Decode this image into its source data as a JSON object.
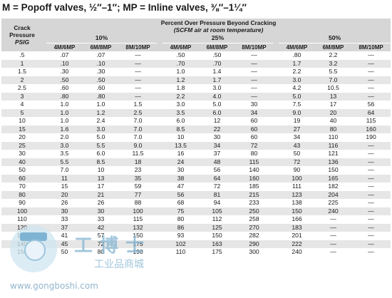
{
  "title": "M = Popoff valves, ½″–1″; MP = Inline valves, ⅜″–1¼″",
  "header": {
    "left_line1": "Crack",
    "left_line2": "Pressure",
    "left_line3": "PSIG",
    "top_line1": "Percent Over Pressure Beyond Cracking",
    "top_line2": "(SCFM air at room temperature)",
    "pct_10": "10%",
    "pct_25": "25%",
    "pct_50": "50%",
    "columns": [
      "4M/6MP",
      "6M/8MP",
      "8M/10MP",
      "4M/6MP",
      "6M/8MP",
      "8M/10MP",
      "4M/6MP",
      "6M/8MP",
      "8M/10MP"
    ]
  },
  "rows": [
    {
      "psig": ".5",
      "v": [
        ".07",
        ".07",
        "—",
        ".50",
        ".50",
        "—",
        ".80",
        "2.2",
        "—"
      ]
    },
    {
      "psig": "1",
      "v": [
        ".10",
        ".10",
        "—",
        ".70",
        ".70",
        "—",
        "1.7",
        "3.2",
        "—"
      ]
    },
    {
      "psig": "1.5",
      "v": [
        ".30",
        ".30",
        "—",
        "1.0",
        "1.4",
        "—",
        "2.2",
        "5.5",
        "—"
      ]
    },
    {
      "psig": "2",
      "v": [
        ".50",
        ".50",
        "—",
        "1.2",
        "1.7",
        "—",
        "3.0",
        "7.0",
        "—"
      ]
    },
    {
      "psig": "2.5",
      "v": [
        ".60",
        ".60",
        "—",
        "1.8",
        "3.0",
        "—",
        "4.2",
        "10.5",
        "—"
      ]
    },
    {
      "psig": "3",
      "v": [
        ".80",
        ".80",
        "—",
        "2.2",
        "4.0",
        "—",
        "5.0",
        "13",
        "—"
      ]
    },
    {
      "psig": "4",
      "v": [
        "1.0",
        "1.0",
        "1.5",
        "3.0",
        "5.0",
        "30",
        "7.5",
        "17",
        "56"
      ]
    },
    {
      "psig": "5",
      "v": [
        "1.0",
        "1.2",
        "2.5",
        "3.5",
        "6.0",
        "34",
        "9.0",
        "20",
        "64"
      ]
    },
    {
      "psig": "10",
      "v": [
        "1.0",
        "2.4",
        "7.0",
        "6.0",
        "12",
        "60",
        "19",
        "40",
        "115"
      ]
    },
    {
      "psig": "15",
      "v": [
        "1.6",
        "3.0",
        "7.0",
        "8.5",
        "22",
        "60",
        "27",
        "80",
        "160"
      ]
    },
    {
      "psig": "20",
      "v": [
        "2.0",
        "5.0",
        "7.0",
        "10",
        "30",
        "60",
        "34",
        "110",
        "190"
      ]
    },
    {
      "psig": "25",
      "v": [
        "3.0",
        "5.5",
        "9.0",
        "13.5",
        "34",
        "72",
        "43",
        "116",
        "—"
      ]
    },
    {
      "psig": "30",
      "v": [
        "3.5",
        "6.0",
        "11.5",
        "16",
        "37",
        "80",
        "50",
        "121",
        "—"
      ]
    },
    {
      "psig": "40",
      "v": [
        "5.5",
        "8.5",
        "18",
        "24",
        "48",
        "115",
        "72",
        "136",
        "—"
      ]
    },
    {
      "psig": "50",
      "v": [
        "7.0",
        "10",
        "23",
        "30",
        "56",
        "140",
        "90",
        "150",
        "—"
      ]
    },
    {
      "psig": "60",
      "v": [
        "11",
        "13",
        "35",
        "38",
        "64",
        "160",
        "100",
        "165",
        "—"
      ]
    },
    {
      "psig": "70",
      "v": [
        "15",
        "17",
        "59",
        "47",
        "72",
        "185",
        "111",
        "182",
        "—"
      ]
    },
    {
      "psig": "80",
      "v": [
        "20",
        "21",
        "77",
        "56",
        "81",
        "215",
        "123",
        "204",
        "—"
      ]
    },
    {
      "psig": "90",
      "v": [
        "26",
        "26",
        "88",
        "68",
        "94",
        "233",
        "138",
        "225",
        "—"
      ]
    },
    {
      "psig": "100",
      "v": [
        "30",
        "30",
        "100",
        "75",
        "105",
        "250",
        "150",
        "240",
        "—"
      ]
    },
    {
      "psig": "110",
      "v": [
        "33",
        "33",
        "115",
        "80",
        "112",
        "258",
        "166",
        "—",
        "—"
      ]
    },
    {
      "psig": "120",
      "v": [
        "37",
        "42",
        "132",
        "86",
        "125",
        "270",
        "183",
        "—",
        "—"
      ]
    },
    {
      "psig": "130",
      "v": [
        "41",
        "57",
        "150",
        "93",
        "150",
        "282",
        "201",
        "—",
        "—"
      ]
    },
    {
      "psig": "140",
      "v": [
        "45",
        "72",
        "175",
        "102",
        "163",
        "290",
        "222",
        "—",
        "—"
      ]
    },
    {
      "psig": "150",
      "v": [
        "50",
        "80",
        "190",
        "110",
        "175",
        "300",
        "240",
        "—",
        "—"
      ]
    }
  ],
  "watermark": {
    "big": "工博士",
    "small": "工业品商城",
    "url": "www.gongboshi.com",
    "color": "#8ab8d4"
  }
}
